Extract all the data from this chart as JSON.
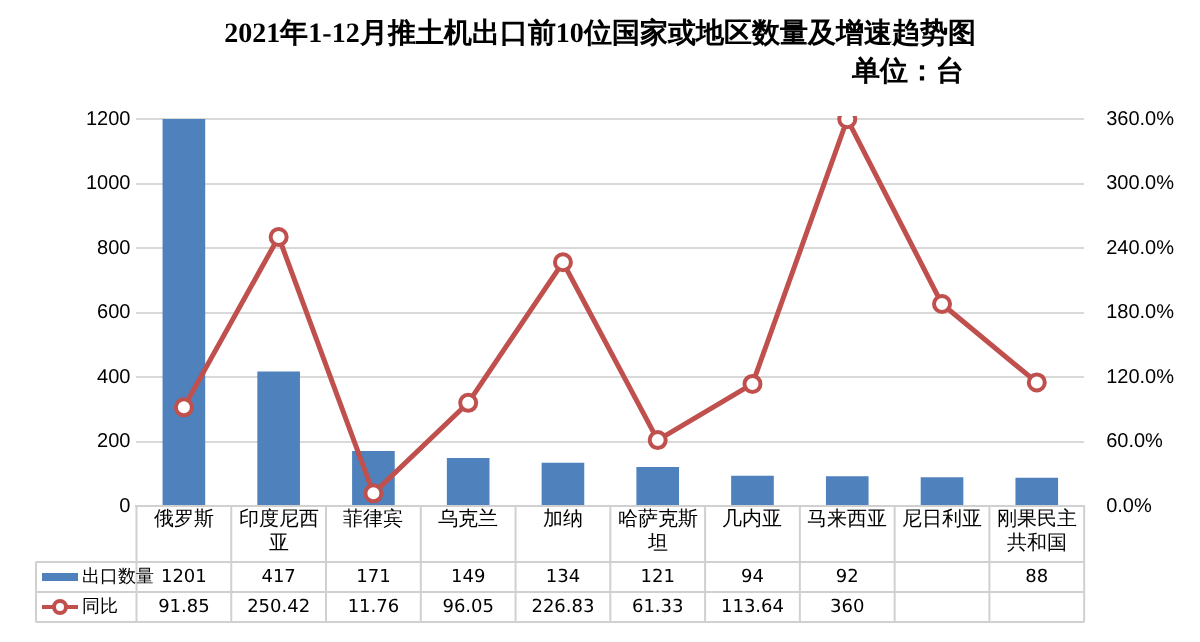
{
  "chart_data": {
    "type": "bar",
    "title": "2021年1-12月推土机出口前10位国家或地区数量及增速趋势图",
    "subtitle": "单位：台",
    "categories": [
      "俄罗斯",
      "印度尼西亚",
      "菲律宾",
      "乌克兰",
      "加纳",
      "哈萨克斯坦",
      "几内亚",
      "马来西亚",
      "尼日利亚",
      "刚果民主共和国"
    ],
    "series": [
      {
        "name": "出口数量",
        "color": "#4f81bd",
        "values": [
          1201,
          417,
          171,
          149,
          134,
          121,
          94,
          92,
          89,
          88
        ],
        "value_labels": [
          "1201",
          "417",
          "171",
          "149",
          "134",
          "121",
          "94",
          "92",
          null,
          "88"
        ]
      },
      {
        "name": "同比",
        "type": "line",
        "axis": "y2",
        "color": "#c0504d",
        "values": [
          91.85,
          250.42,
          11.76,
          96.05,
          226.83,
          61.33,
          113.64,
          360,
          188,
          115
        ],
        "value_labels": [
          "91.85",
          "250.42",
          "11.76",
          "96.05",
          "226.83",
          "61.33",
          "113.64",
          "360",
          null,
          null
        ]
      }
    ],
    "ylim": [
      0,
      1210
    ],
    "yticks": [
      0,
      200,
      400,
      600,
      800,
      1000,
      1200
    ],
    "y2lim": [
      0,
      363
    ],
    "y2ticks": [
      {
        "value": 0,
        "label": "0.0%"
      },
      {
        "value": 60,
        "label": "60.0%"
      },
      {
        "value": 120,
        "label": "120.0%"
      },
      {
        "value": 180,
        "label": "180.0%"
      },
      {
        "value": 240,
        "label": "240.0%"
      },
      {
        "value": 300,
        "label": "300.0%"
      },
      {
        "value": 360,
        "label": "360.0%"
      }
    ],
    "grid": "y",
    "legend": "bottom",
    "marker": "circle",
    "line_style": "solid"
  }
}
